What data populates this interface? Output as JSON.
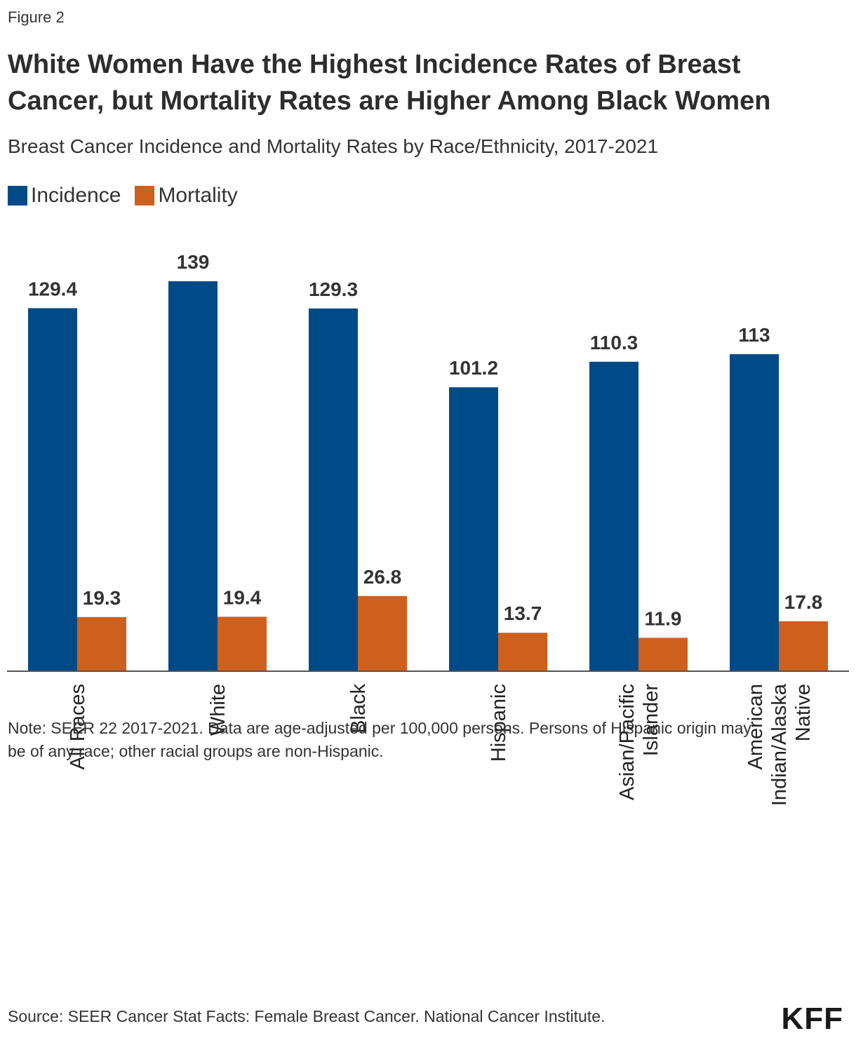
{
  "figure_label": "Figure 2",
  "title": "White Women Have the Highest Incidence Rates of Breast Cancer, but Mortality Rates are Higher Among Black Women",
  "subtitle": "Breast Cancer Incidence and Mortality Rates by Race/Ethnicity, 2017-2021",
  "legend": [
    {
      "label": "Incidence",
      "color": "#004b87"
    },
    {
      "label": "Mortality",
      "color": "#cf5f1c"
    }
  ],
  "chart_data": {
    "type": "bar",
    "title": "Breast Cancer Incidence and Mortality Rates by Race/Ethnicity, 2017-2021",
    "xlabel": "",
    "ylabel": "",
    "ylim": [
      0,
      150
    ],
    "grid": false,
    "categories": [
      [
        "All Races"
      ],
      [
        "White"
      ],
      [
        "Black"
      ],
      [
        "Hispanic"
      ],
      [
        "Asian/Pacific",
        "Islander"
      ],
      [
        "American",
        "Indian/Alaska",
        "Native"
      ]
    ],
    "series": [
      {
        "name": "Incidence",
        "color": "#004b87",
        "values": [
          129.4,
          139,
          129.3,
          101.2,
          110.3,
          113
        ]
      },
      {
        "name": "Mortality",
        "color": "#cf5f1c",
        "values": [
          19.3,
          19.4,
          26.8,
          13.7,
          11.9,
          17.8
        ]
      }
    ]
  },
  "note": "Note: SEER 22 2017-2021. Data are age-adjusted per 100,000 persons. Persons of Hispanic origin may be of any race; other racial groups are non-Hispanic.",
  "source": "Source: SEER Cancer Stat Facts: Female Breast Cancer. National Cancer Institute.",
  "logo_text": "KFF"
}
